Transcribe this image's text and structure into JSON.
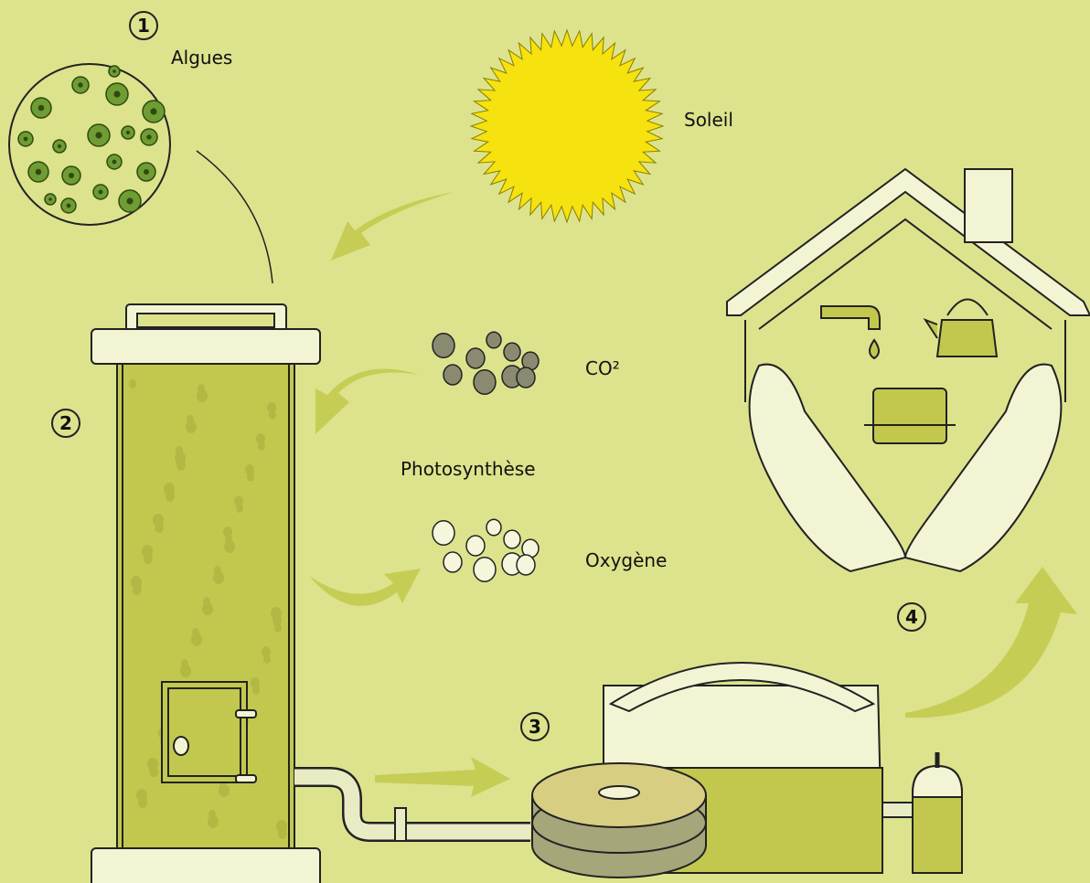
{
  "steps": [
    "1",
    "2",
    "3",
    "4"
  ],
  "labels": {
    "algae": "Algues",
    "sun": "Soleil",
    "co2": "CO²",
    "process": "Photosynthèse",
    "oxygen": "Oxygène"
  }
}
